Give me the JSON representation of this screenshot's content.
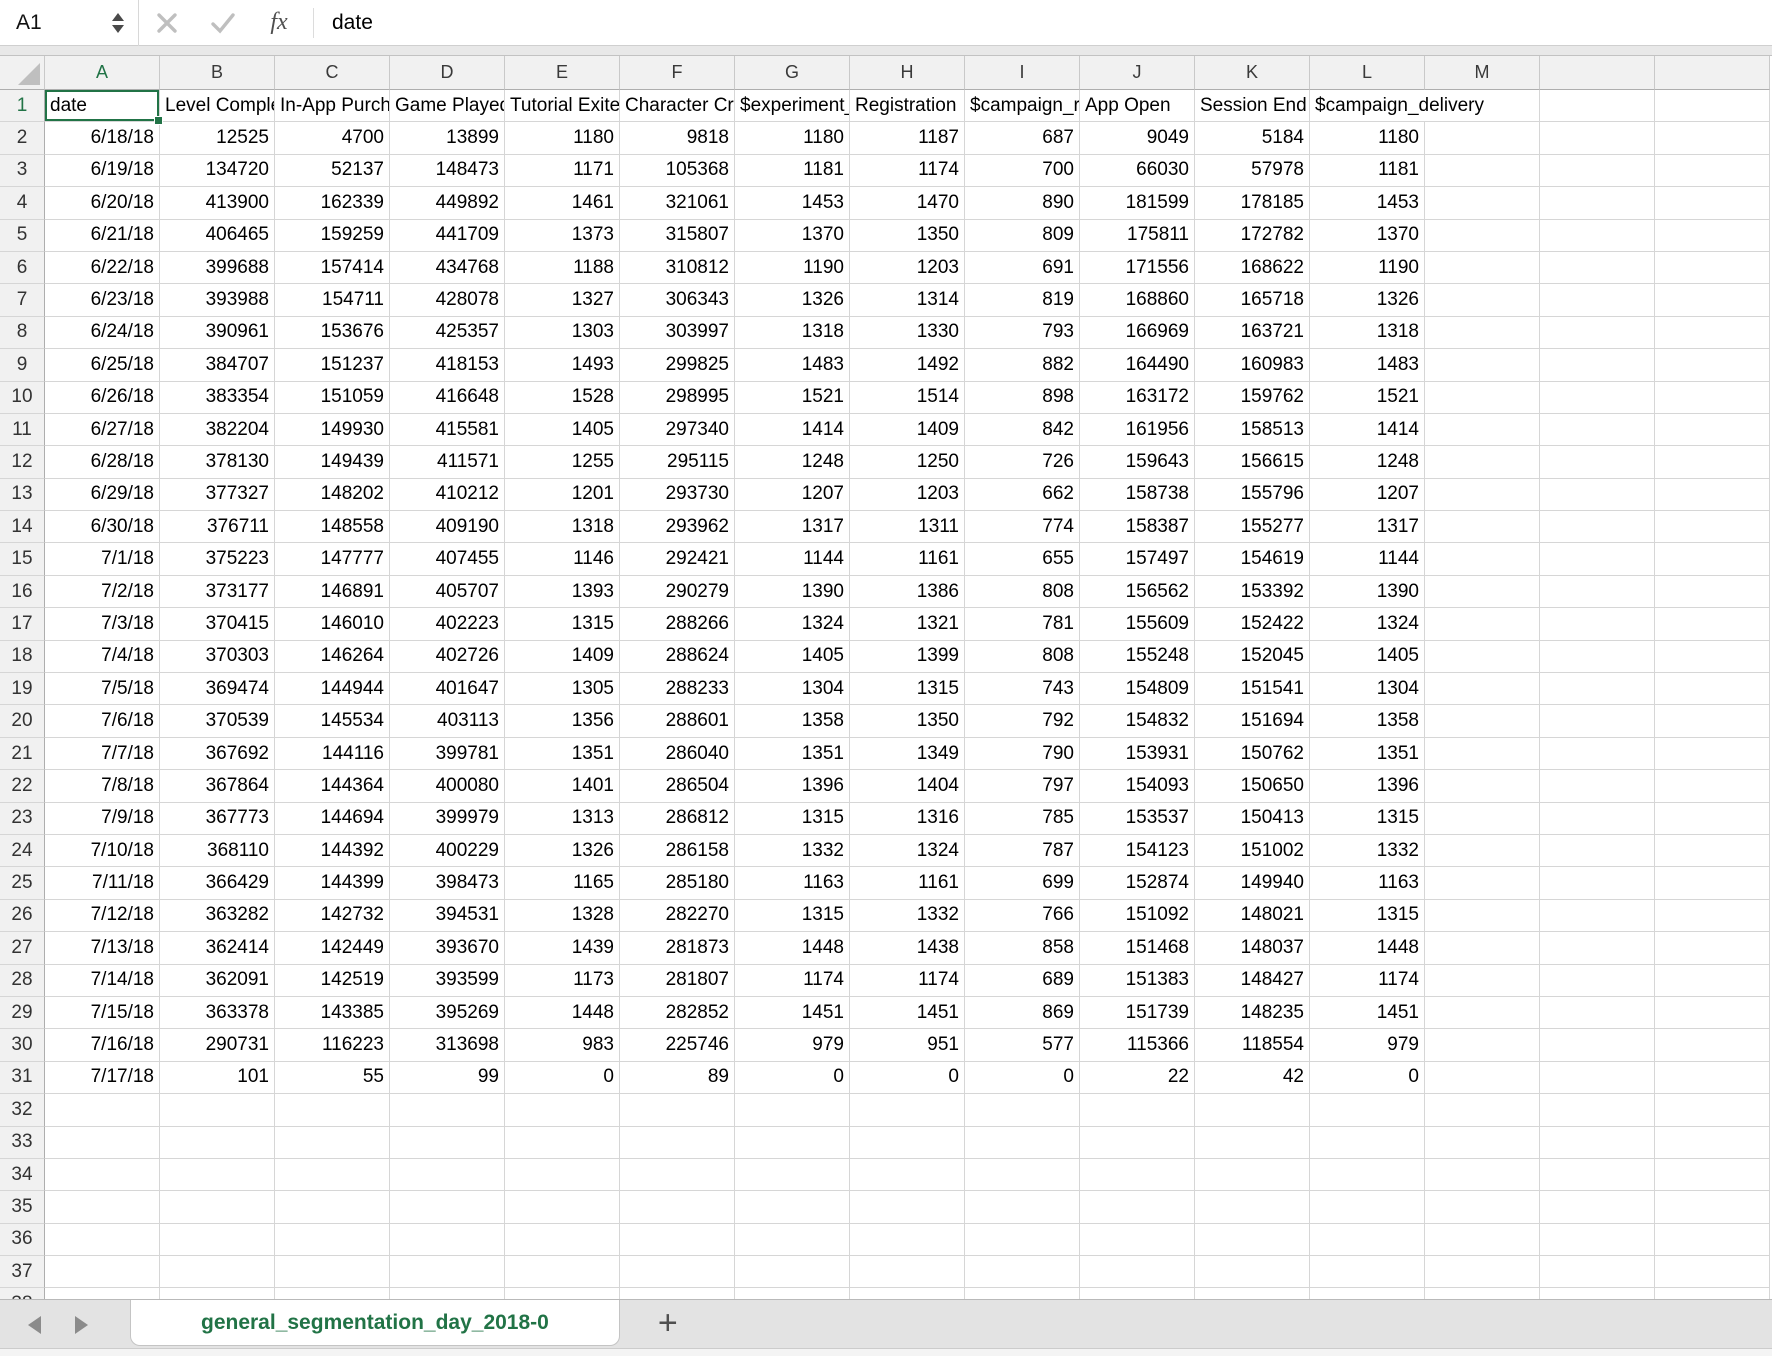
{
  "formula_bar": {
    "name_box": "A1",
    "fx_label": "fx",
    "formula_value": "date"
  },
  "grid": {
    "column_letters": [
      "A",
      "B",
      "C",
      "D",
      "E",
      "F",
      "G",
      "H",
      "I",
      "J",
      "K",
      "L",
      "M"
    ],
    "selection": {
      "cell": "A1",
      "column": "A",
      "row": 1
    },
    "headers": [
      "date",
      "Level Complete",
      "In-App Purchase",
      "Game Played",
      "Tutorial Exited",
      "Character Created",
      "$experiment_started",
      "Registration",
      "$campaign_received",
      "App Open",
      "Session End",
      "$campaign_delivery"
    ],
    "rows": [
      [
        "6/18/18",
        12525,
        4700,
        13899,
        1180,
        9818,
        1180,
        1187,
        687,
        9049,
        5184,
        1180
      ],
      [
        "6/19/18",
        134720,
        52137,
        148473,
        1171,
        105368,
        1181,
        1174,
        700,
        66030,
        57978,
        1181
      ],
      [
        "6/20/18",
        413900,
        162339,
        449892,
        1461,
        321061,
        1453,
        1470,
        890,
        181599,
        178185,
        1453
      ],
      [
        "6/21/18",
        406465,
        159259,
        441709,
        1373,
        315807,
        1370,
        1350,
        809,
        175811,
        172782,
        1370
      ],
      [
        "6/22/18",
        399688,
        157414,
        434768,
        1188,
        310812,
        1190,
        1203,
        691,
        171556,
        168622,
        1190
      ],
      [
        "6/23/18",
        393988,
        154711,
        428078,
        1327,
        306343,
        1326,
        1314,
        819,
        168860,
        165718,
        1326
      ],
      [
        "6/24/18",
        390961,
        153676,
        425357,
        1303,
        303997,
        1318,
        1330,
        793,
        166969,
        163721,
        1318
      ],
      [
        "6/25/18",
        384707,
        151237,
        418153,
        1493,
        299825,
        1483,
        1492,
        882,
        164490,
        160983,
        1483
      ],
      [
        "6/26/18",
        383354,
        151059,
        416648,
        1528,
        298995,
        1521,
        1514,
        898,
        163172,
        159762,
        1521
      ],
      [
        "6/27/18",
        382204,
        149930,
        415581,
        1405,
        297340,
        1414,
        1409,
        842,
        161956,
        158513,
        1414
      ],
      [
        "6/28/18",
        378130,
        149439,
        411571,
        1255,
        295115,
        1248,
        1250,
        726,
        159643,
        156615,
        1248
      ],
      [
        "6/29/18",
        377327,
        148202,
        410212,
        1201,
        293730,
        1207,
        1203,
        662,
        158738,
        155796,
        1207
      ],
      [
        "6/30/18",
        376711,
        148558,
        409190,
        1318,
        293962,
        1317,
        1311,
        774,
        158387,
        155277,
        1317
      ],
      [
        "7/1/18",
        375223,
        147777,
        407455,
        1146,
        292421,
        1144,
        1161,
        655,
        157497,
        154619,
        1144
      ],
      [
        "7/2/18",
        373177,
        146891,
        405707,
        1393,
        290279,
        1390,
        1386,
        808,
        156562,
        153392,
        1390
      ],
      [
        "7/3/18",
        370415,
        146010,
        402223,
        1315,
        288266,
        1324,
        1321,
        781,
        155609,
        152422,
        1324
      ],
      [
        "7/4/18",
        370303,
        146264,
        402726,
        1409,
        288624,
        1405,
        1399,
        808,
        155248,
        152045,
        1405
      ],
      [
        "7/5/18",
        369474,
        144944,
        401647,
        1305,
        288233,
        1304,
        1315,
        743,
        154809,
        151541,
        1304
      ],
      [
        "7/6/18",
        370539,
        145534,
        403113,
        1356,
        288601,
        1358,
        1350,
        792,
        154832,
        151694,
        1358
      ],
      [
        "7/7/18",
        367692,
        144116,
        399781,
        1351,
        286040,
        1351,
        1349,
        790,
        153931,
        150762,
        1351
      ],
      [
        "7/8/18",
        367864,
        144364,
        400080,
        1401,
        286504,
        1396,
        1404,
        797,
        154093,
        150650,
        1396
      ],
      [
        "7/9/18",
        367773,
        144694,
        399979,
        1313,
        286812,
        1315,
        1316,
        785,
        153537,
        150413,
        1315
      ],
      [
        "7/10/18",
        368110,
        144392,
        400229,
        1326,
        286158,
        1332,
        1324,
        787,
        154123,
        151002,
        1332
      ],
      [
        "7/11/18",
        366429,
        144399,
        398473,
        1165,
        285180,
        1163,
        1161,
        699,
        152874,
        149940,
        1163
      ],
      [
        "7/12/18",
        363282,
        142732,
        394531,
        1328,
        282270,
        1315,
        1332,
        766,
        151092,
        148021,
        1315
      ],
      [
        "7/13/18",
        362414,
        142449,
        393670,
        1439,
        281873,
        1448,
        1438,
        858,
        151468,
        148037,
        1448
      ],
      [
        "7/14/18",
        362091,
        142519,
        393599,
        1173,
        281807,
        1174,
        1174,
        689,
        151383,
        148427,
        1174
      ],
      [
        "7/15/18",
        363378,
        143385,
        395269,
        1448,
        282852,
        1451,
        1451,
        869,
        151739,
        148235,
        1451
      ],
      [
        "7/16/18",
        290731,
        116223,
        313698,
        983,
        225746,
        979,
        951,
        577,
        115366,
        118554,
        979
      ],
      [
        "7/17/18",
        101,
        55,
        99,
        0,
        89,
        0,
        0,
        0,
        22,
        42,
        0
      ]
    ],
    "first_data_row": 2,
    "last_data_row": 31,
    "last_visible_row": 38
  },
  "tab_bar": {
    "active_sheet": "general_segmentation_day_2018-0",
    "add_sheet_label": "+"
  },
  "colors": {
    "accent_green": "#217346",
    "gridline": "#d6d6d6",
    "header_bg": "#f1f1f1",
    "tab_bar_bg": "#e3e3e3"
  }
}
